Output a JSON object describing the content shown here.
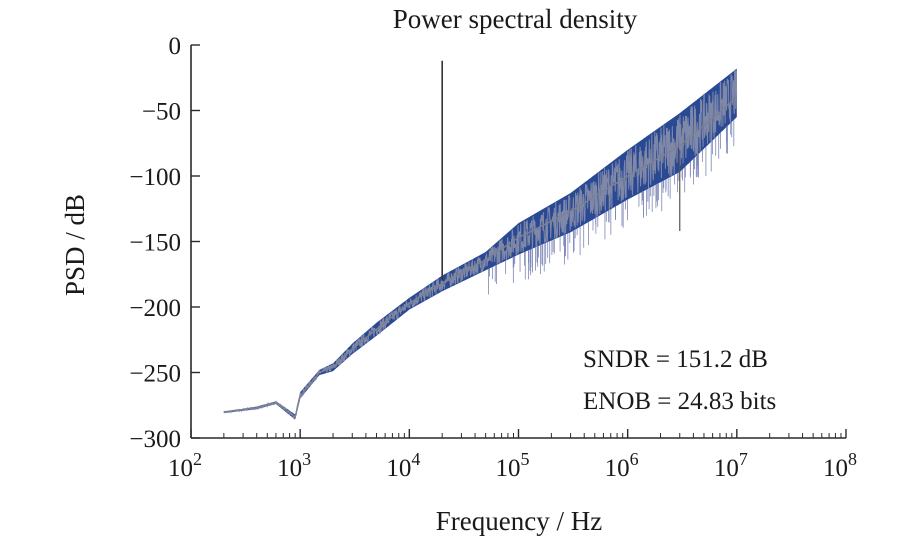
{
  "chart_data": {
    "type": "line",
    "title": "Power spectral density",
    "xlabel": "Frequency / Hz",
    "ylabel": "PSD / dB",
    "xscale": "log",
    "xlim": [
      100,
      100000000
    ],
    "ylim": [
      -300,
      0
    ],
    "x_ticks": [
      {
        "base": "10",
        "exp": "2"
      },
      {
        "base": "10",
        "exp": "3"
      },
      {
        "base": "10",
        "exp": "4"
      },
      {
        "base": "10",
        "exp": "5"
      },
      {
        "base": "10",
        "exp": "6"
      },
      {
        "base": "10",
        "exp": "7"
      },
      {
        "base": "10",
        "exp": "8"
      }
    ],
    "y_ticks": [
      "0",
      "−50",
      "−100",
      "−150",
      "−200",
      "−250",
      "−300"
    ],
    "grid": false,
    "series": [
      {
        "color": "#1f3f8f",
        "x": [
          200,
          400,
          600,
          900,
          1000,
          1500,
          2000,
          3000,
          5000,
          10000,
          20000,
          50000,
          100000,
          300000,
          1000000,
          3000000,
          10000000
        ],
        "y": [
          -280,
          -277,
          -273,
          -284,
          -268,
          -250,
          -246,
          -232,
          -217,
          -197,
          -182,
          -164,
          -147,
          -127,
          -100,
          -77,
          -40
        ],
        "upper": [
          -280,
          -276,
          -272,
          -282,
          -265,
          -248,
          -243,
          -228,
          -212,
          -193,
          -176,
          -158,
          -136,
          -113,
          -80,
          -52,
          -18
        ],
        "lower": [
          -281,
          -278,
          -274,
          -286,
          -270,
          -252,
          -249,
          -236,
          -222,
          -202,
          -188,
          -172,
          -160,
          -143,
          -118,
          -97,
          -55
        ]
      }
    ],
    "spurs": [
      {
        "x": 20000,
        "y_top": -12,
        "y_bottom": -180,
        "color": "#333333"
      },
      {
        "x": 3000000,
        "y_top": -80,
        "y_bottom": -142,
        "color": "#555555"
      }
    ],
    "annotations": [
      {
        "text": "SNDR = 151.2 dB"
      },
      {
        "text": "ENOB = 24.83 bits"
      }
    ]
  }
}
